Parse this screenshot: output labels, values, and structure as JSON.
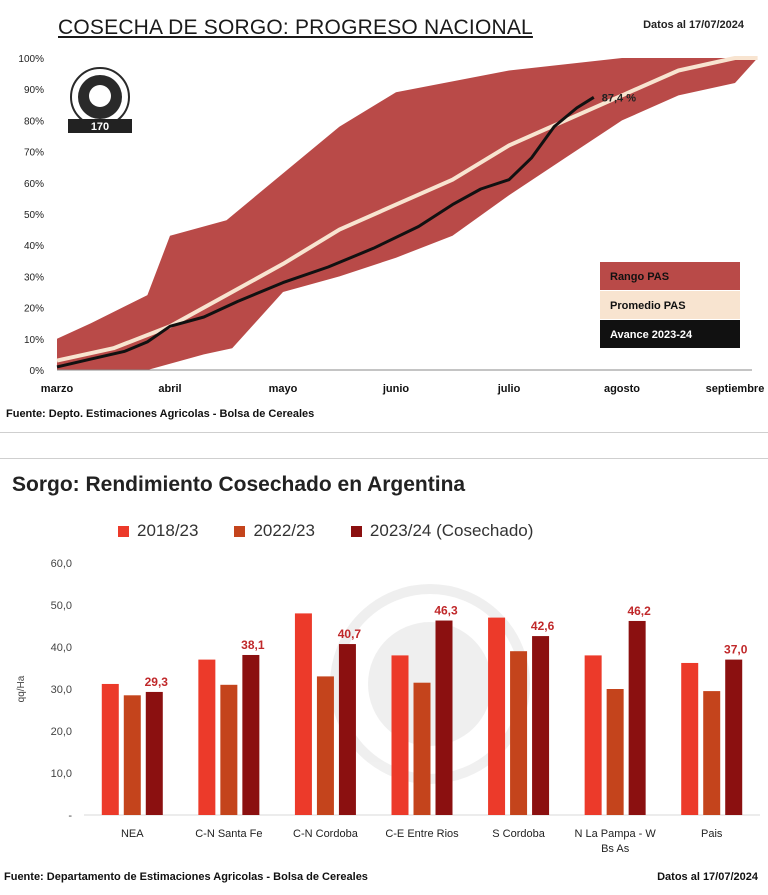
{
  "chart_data": [
    {
      "type": "area",
      "title": "COSECHA DE SORGO: PROGRESO NACIONAL",
      "subtitle": "Datos al 17/07/2024",
      "source": "Fuente: Depto. Estimaciones Agricolas - Bolsa de Cereales",
      "x_ticks": [
        "marzo",
        "abril",
        "mayo",
        "junio",
        "julio",
        "agosto",
        "septiembre"
      ],
      "y_ticks": [
        "0%",
        "10%",
        "20%",
        "30%",
        "40%",
        "50%",
        "60%",
        "70%",
        "80%",
        "90%",
        "100%"
      ],
      "ylim": [
        0,
        100
      ],
      "grid": false,
      "legend_position": "bottom-right",
      "series": [
        {
          "name": "Rango PAS",
          "color": "#b94a48",
          "upper": [
            [
              0,
              10
            ],
            [
              0.3,
              15
            ],
            [
              0.8,
              24
            ],
            [
              1,
              43
            ],
            [
              1.5,
              48
            ],
            [
              2,
              63
            ],
            [
              2.5,
              78
            ],
            [
              3,
              89
            ],
            [
              3.5,
              92.5
            ],
            [
              4,
              96
            ],
            [
              4.5,
              98
            ],
            [
              5,
              100
            ],
            [
              6,
              100
            ],
            [
              6.2,
              100
            ]
          ],
          "lower": [
            [
              0,
              0
            ],
            [
              0.3,
              0
            ],
            [
              0.8,
              0
            ],
            [
              1,
              2
            ],
            [
              1.3,
              5
            ],
            [
              1.55,
              7
            ],
            [
              2,
              25
            ],
            [
              2.5,
              30
            ],
            [
              3,
              36
            ],
            [
              3.5,
              43
            ],
            [
              4,
              56
            ],
            [
              4.5,
              68
            ],
            [
              5,
              80
            ],
            [
              5.5,
              88
            ],
            [
              6,
              92
            ],
            [
              6.2,
              100
            ]
          ]
        },
        {
          "name": "Promedio PAS",
          "color": "#f8e4d0",
          "points": [
            [
              0,
              3
            ],
            [
              0.5,
              7
            ],
            [
              1,
              14
            ],
            [
              1.5,
              24
            ],
            [
              2,
              34
            ],
            [
              2.5,
              45
            ],
            [
              3,
              53
            ],
            [
              3.5,
              61
            ],
            [
              4,
              72
            ],
            [
              4.5,
              80
            ],
            [
              5,
              88
            ],
            [
              5.5,
              96
            ],
            [
              6,
              100
            ],
            [
              6.2,
              100
            ]
          ]
        },
        {
          "name": "Avance 2023-24",
          "color": "#111111",
          "end_label": "87,4 %",
          "points": [
            [
              0,
              1
            ],
            [
              0.3,
              3.5
            ],
            [
              0.6,
              6
            ],
            [
              0.8,
              9
            ],
            [
              1,
              14
            ],
            [
              1.3,
              17
            ],
            [
              1.6,
              22
            ],
            [
              2,
              28
            ],
            [
              2.4,
              33
            ],
            [
              2.8,
              39
            ],
            [
              3.2,
              46
            ],
            [
              3.5,
              53
            ],
            [
              3.75,
              58
            ],
            [
              4,
              61
            ],
            [
              4.2,
              68
            ],
            [
              4.4,
              78
            ],
            [
              4.6,
              84
            ],
            [
              4.75,
              87.4
            ]
          ]
        }
      ]
    },
    {
      "type": "bar",
      "title": "Sorgo: Rendimiento Cosechado en Argentina",
      "ylabel": "qq/Ha",
      "ylim": [
        0,
        60
      ],
      "y_ticks": [
        "60,0",
        "50,0",
        "40,0",
        "30,0",
        "20,0",
        "10,0",
        "-"
      ],
      "categories": [
        "NEA",
        "C-N Santa Fe",
        "C-N Cordoba",
        "C-E Entre Rios",
        "S Cordoba",
        "N La Pampa - W Bs As",
        "Pais"
      ],
      "series": [
        {
          "name": "2018/23",
          "color": "#ec3a2a",
          "values": [
            31.2,
            37.0,
            48.0,
            38.0,
            47.0,
            38.0,
            36.2
          ]
        },
        {
          "name": "2022/23",
          "color": "#c4441c",
          "values": [
            28.5,
            31.0,
            33.0,
            31.5,
            39.0,
            30.0,
            29.5
          ]
        },
        {
          "name": "2023/24 (Cosechado)",
          "color": "#8b1010",
          "values": [
            29.3,
            38.1,
            40.7,
            46.3,
            42.6,
            46.2,
            37.0
          ],
          "data_labels": [
            "29,3",
            "38,1",
            "40,7",
            "46,3",
            "42,6",
            "46,2",
            "37,0"
          ],
          "label_color": "#c0282a"
        }
      ],
      "source": "Fuente: Departamento de Estimaciones Agricolas - Bolsa de Cereales",
      "date": "Datos al 17/07/2024"
    }
  ]
}
